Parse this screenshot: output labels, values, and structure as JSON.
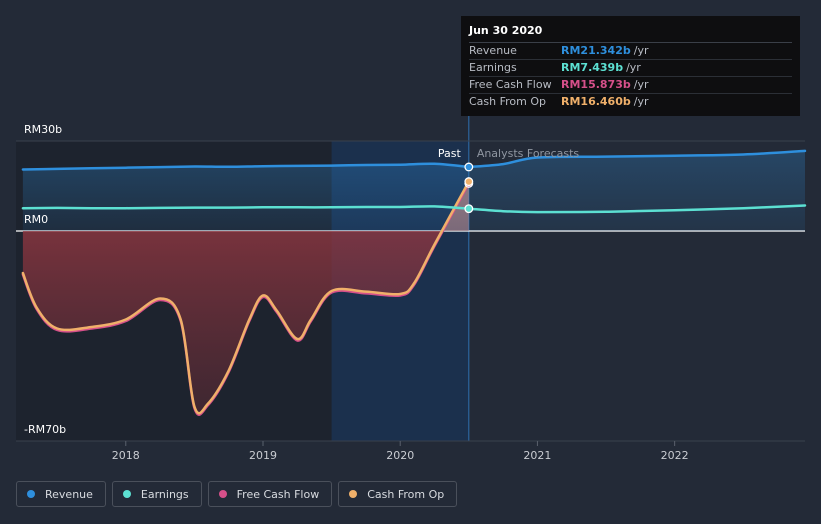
{
  "tooltip": {
    "date": "Jun 30 2020",
    "rows": [
      {
        "label": "Revenue",
        "value": "RM21.342b",
        "unit": "/yr",
        "color": "#2e8fdd"
      },
      {
        "label": "Earnings",
        "value": "RM7.439b",
        "unit": "/yr",
        "color": "#5ce0d2"
      },
      {
        "label": "Free Cash Flow",
        "value": "RM15.873b",
        "unit": "/yr",
        "color": "#d6508a"
      },
      {
        "label": "Cash From Op",
        "value": "RM16.460b",
        "unit": "/yr",
        "color": "#f0b06a"
      }
    ]
  },
  "legend": [
    {
      "label": "Revenue",
      "color": "#2e8fdd"
    },
    {
      "label": "Earnings",
      "color": "#5ce0d2"
    },
    {
      "label": "Free Cash Flow",
      "color": "#d6508a"
    },
    {
      "label": "Cash From Op",
      "color": "#f0b06a"
    }
  ],
  "chart_data": {
    "type": "line",
    "y_tick_labels": [
      "RM30b",
      "RM0",
      "-RM70b"
    ],
    "y_ticks": [
      30,
      0,
      -70
    ],
    "ylim": [
      -70,
      30
    ],
    "x_tick_labels": [
      "2018",
      "2019",
      "2020",
      "2021",
      "2022"
    ],
    "x_ticks": [
      2018,
      2019,
      2020,
      2021,
      2022
    ],
    "xlim": [
      2017.2,
      2022.95
    ],
    "past_label": "Past",
    "forecast_label": "Analysts Forecasts",
    "divider_x": 2020.5,
    "highlight_start_x": 2019.5,
    "grid": true,
    "series": [
      {
        "name": "Revenue",
        "color": "#2e8fdd",
        "x": [
          2017.25,
          2017.5,
          2017.75,
          2018.0,
          2018.25,
          2018.5,
          2018.75,
          2019.0,
          2019.25,
          2019.5,
          2019.75,
          2020.0,
          2020.25,
          2020.5
        ],
        "values": [
          20.5,
          20.7,
          20.9,
          21.1,
          21.3,
          21.5,
          21.4,
          21.6,
          21.7,
          21.8,
          22.0,
          22.1,
          22.4,
          21.342
        ]
      },
      {
        "name": "Revenue Forecast",
        "color": "#2e8fdd",
        "x": [
          2020.5,
          2020.75,
          2021.0,
          2021.5,
          2022.0,
          2022.5,
          2022.95
        ],
        "values": [
          21.342,
          22.3,
          24.5,
          24.8,
          25.1,
          25.5,
          26.7
        ]
      },
      {
        "name": "Earnings",
        "color": "#5ce0d2",
        "x": [
          2017.25,
          2017.5,
          2017.75,
          2018.0,
          2018.25,
          2018.5,
          2018.75,
          2019.0,
          2019.25,
          2019.5,
          2019.75,
          2020.0,
          2020.25,
          2020.5
        ],
        "values": [
          7.6,
          7.7,
          7.6,
          7.6,
          7.7,
          7.8,
          7.8,
          7.9,
          7.9,
          7.9,
          8.0,
          8.0,
          8.2,
          7.439
        ]
      },
      {
        "name": "Earnings Forecast",
        "color": "#5ce0d2",
        "x": [
          2020.5,
          2020.75,
          2021.0,
          2021.5,
          2022.0,
          2022.5,
          2022.95
        ],
        "values": [
          7.439,
          6.6,
          6.3,
          6.4,
          6.9,
          7.6,
          8.5
        ]
      },
      {
        "name": "Free Cash Flow",
        "color": "#d6508a",
        "x": [
          2017.25,
          2017.35,
          2017.5,
          2017.75,
          2018.0,
          2018.25,
          2018.4,
          2018.5,
          2018.6,
          2018.75,
          2018.9,
          2019.0,
          2019.1,
          2019.25,
          2019.35,
          2019.5,
          2019.75,
          2020.0,
          2020.1,
          2020.25,
          2020.5
        ],
        "values": [
          -14.5,
          -26.0,
          -33.0,
          -32.5,
          -30.0,
          -23.0,
          -30.0,
          -59.0,
          -58.0,
          -47.0,
          -30.0,
          -22.0,
          -27.0,
          -36.5,
          -30.0,
          -20.5,
          -20.8,
          -21.5,
          -18.0,
          -5.0,
          15.873
        ]
      },
      {
        "name": "Cash From Op",
        "color": "#f0b06a",
        "x": [
          2017.25,
          2017.35,
          2017.5,
          2017.75,
          2018.0,
          2018.25,
          2018.4,
          2018.5,
          2018.6,
          2018.75,
          2018.9,
          2019.0,
          2019.1,
          2019.25,
          2019.35,
          2019.5,
          2019.75,
          2020.0,
          2020.1,
          2020.25,
          2020.5
        ],
        "values": [
          -14.0,
          -25.5,
          -32.5,
          -32.0,
          -29.5,
          -22.5,
          -29.5,
          -58.5,
          -57.5,
          -46.5,
          -29.5,
          -21.5,
          -26.5,
          -36.0,
          -29.5,
          -20.0,
          -20.2,
          -21.0,
          -17.5,
          -4.5,
          16.46
        ]
      }
    ]
  }
}
